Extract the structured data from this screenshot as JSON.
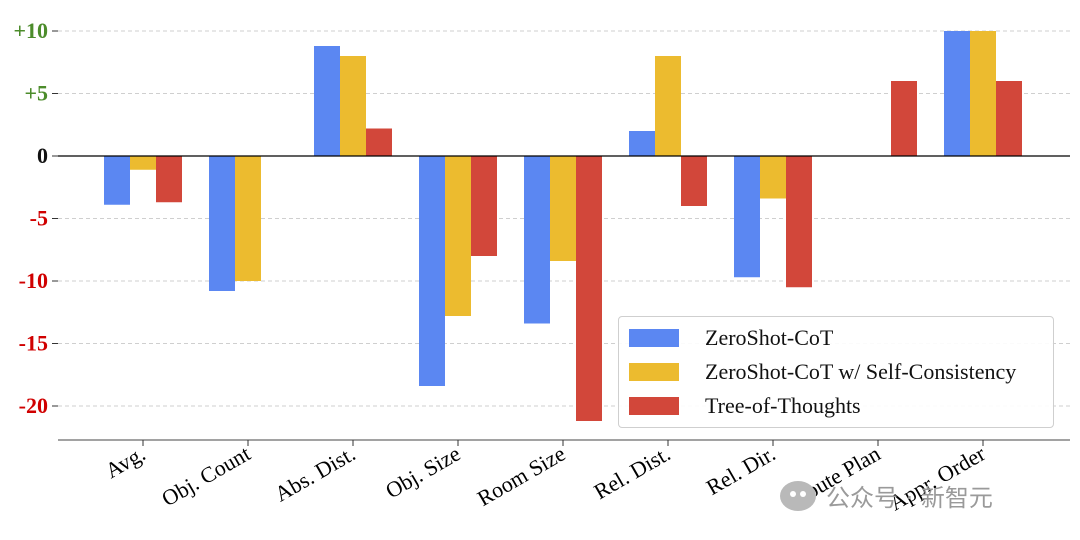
{
  "chart_data": {
    "type": "bar",
    "title": "",
    "xlabel": "",
    "ylabel": "",
    "ylim": [
      -22.5,
      10
    ],
    "yticks": [
      {
        "value": 10,
        "label": "+10",
        "color": "#4c8c2b"
      },
      {
        "value": 5,
        "label": "+5",
        "color": "#4c8c2b"
      },
      {
        "value": 0,
        "label": "0",
        "color": "#111111"
      },
      {
        "value": -5,
        "label": "-5",
        "color": "#d00000"
      },
      {
        "value": -10,
        "label": "-10",
        "color": "#d00000"
      },
      {
        "value": -15,
        "label": "-15",
        "color": "#d00000"
      },
      {
        "value": -20,
        "label": "-20",
        "color": "#d00000"
      }
    ],
    "grid": true,
    "legend_position": "lower-right",
    "categories": [
      "Avg.",
      "Obj. Count",
      "Abs. Dist.",
      "Obj. Size",
      "Room Size",
      "Rel. Dist.",
      "Rel. Dir.",
      "Route Plan",
      "Appr. Order"
    ],
    "series": [
      {
        "name": "ZeroShot-CoT",
        "color": "#5b87f2",
        "values": [
          -3.9,
          -10.8,
          8.8,
          -18.4,
          -13.4,
          2.0,
          -9.7,
          0,
          10
        ]
      },
      {
        "name": "ZeroShot-CoT w/ Self-Consistency",
        "color": "#ecbb2f",
        "values": [
          -1.1,
          -10.0,
          8.0,
          -12.8,
          -8.4,
          8.0,
          -3.4,
          0,
          10
        ]
      },
      {
        "name": "Tree-of-Thoughts",
        "color": "#d2473a",
        "values": [
          -3.7,
          0,
          2.2,
          -8.0,
          -21.2,
          -4.0,
          -10.5,
          6.0,
          6.0
        ]
      }
    ]
  },
  "watermark": {
    "text": "公众号 · 新智元"
  }
}
